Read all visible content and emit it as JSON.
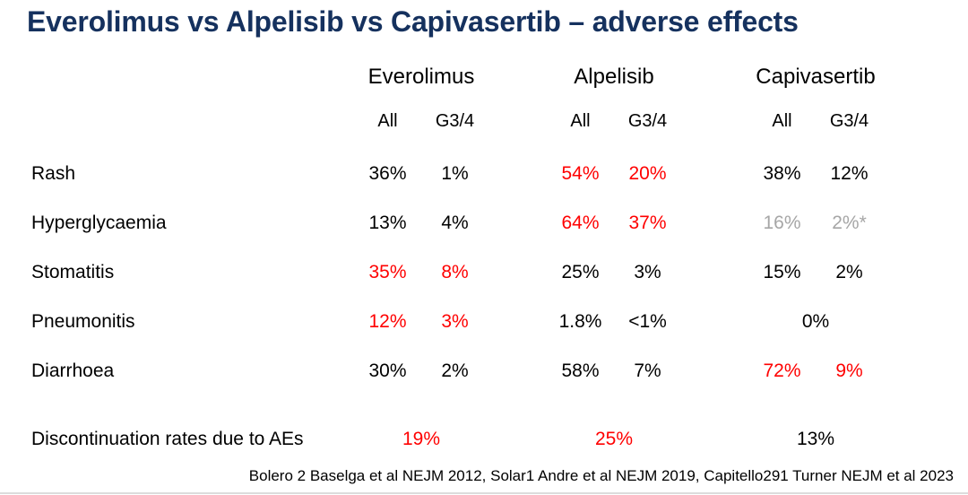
{
  "title": "Everolimus vs Alpelisib vs Capivasertib – adverse effects",
  "colors": {
    "title_color": "#15315e",
    "highlight": "#ff0000",
    "muted": "#a6a6a6",
    "text": "#000000",
    "divider": "#dcdcdc"
  },
  "table": {
    "drugs": [
      "Everolimus",
      "Alpelisib",
      "Capivasertib"
    ],
    "subheaders": [
      "All",
      "G3/4"
    ],
    "rows": [
      {
        "label": "Rash",
        "cells": [
          {
            "all": "36%",
            "g34": "1%",
            "style": "normal"
          },
          {
            "all": "54%",
            "g34": "20%",
            "style": "highlight"
          },
          {
            "all": "38%",
            "g34": "12%",
            "style": "normal"
          }
        ]
      },
      {
        "label": "Hyperglycaemia",
        "cells": [
          {
            "all": "13%",
            "g34": "4%",
            "style": "normal"
          },
          {
            "all": "64%",
            "g34": "37%",
            "style": "highlight"
          },
          {
            "all": "16%",
            "g34": "2%*",
            "style": "muted"
          }
        ]
      },
      {
        "label": "Stomatitis",
        "cells": [
          {
            "all": "35%",
            "g34": "8%",
            "style": "highlight"
          },
          {
            "all": "25%",
            "g34": "3%",
            "style": "normal"
          },
          {
            "all": "15%",
            "g34": "2%",
            "style": "normal"
          }
        ]
      },
      {
        "label": "Pneumonitis",
        "cells": [
          {
            "all": "12%",
            "g34": "3%",
            "style": "highlight"
          },
          {
            "all": "1.8%",
            "g34": "<1%",
            "style": "normal"
          },
          {
            "all": "0%",
            "g34": "",
            "style": "normal",
            "merged": true
          }
        ]
      },
      {
        "label": "Diarrhoea",
        "cells": [
          {
            "all": "30%",
            "g34": "2%",
            "style": "normal"
          },
          {
            "all": "58%",
            "g34": "7%",
            "style": "normal"
          },
          {
            "all": "72%",
            "g34": "9%",
            "style": "highlight"
          }
        ]
      }
    ],
    "summary": {
      "label": "Discontinuation rates due to AEs",
      "values": [
        {
          "text": "19%",
          "style": "highlight"
        },
        {
          "text": "25%",
          "style": "highlight"
        },
        {
          "text": "13%",
          "style": "normal"
        }
      ]
    }
  },
  "footnote": "Bolero 2 Baselga et al NEJM 2012, Solar1 Andre et al NEJM 2019, Capitello291 Turner NEJM et al 2023"
}
